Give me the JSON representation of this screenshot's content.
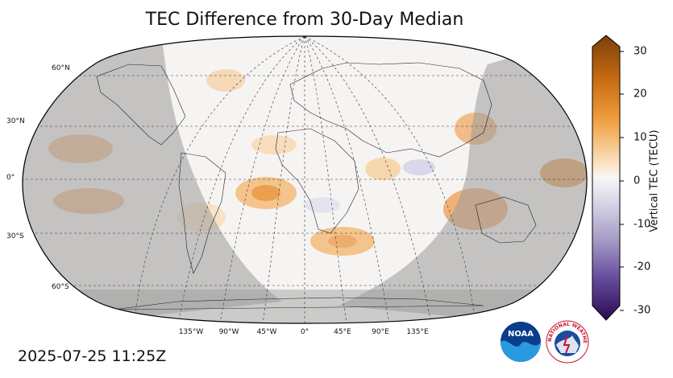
{
  "title": "TEC Difference from 30-Day Median",
  "timestamp": "2025-07-25 11:25Z",
  "colorbar": {
    "label": "Vertical TEC (TECU)",
    "ticks": [
      "30",
      "20",
      "10",
      "0",
      "-10",
      "-20",
      "-30"
    ],
    "range": [
      -30,
      30
    ]
  },
  "lat_labels": [
    "60°N",
    "30°N",
    "0°",
    "30°S",
    "60°S"
  ],
  "lon_labels": [
    "135°W",
    "90°W",
    "45°W",
    "0°",
    "45°E",
    "90°E",
    "135°E"
  ],
  "logos": {
    "noaa_text": "NOAA",
    "nws_text": "NATIONAL WEATHER SERVICE"
  },
  "colors": {
    "night_shade": "#b3b3b3",
    "positive": "#e08a2a",
    "negative": "#6a5a9a",
    "neutral": "#f6f4f2"
  }
}
